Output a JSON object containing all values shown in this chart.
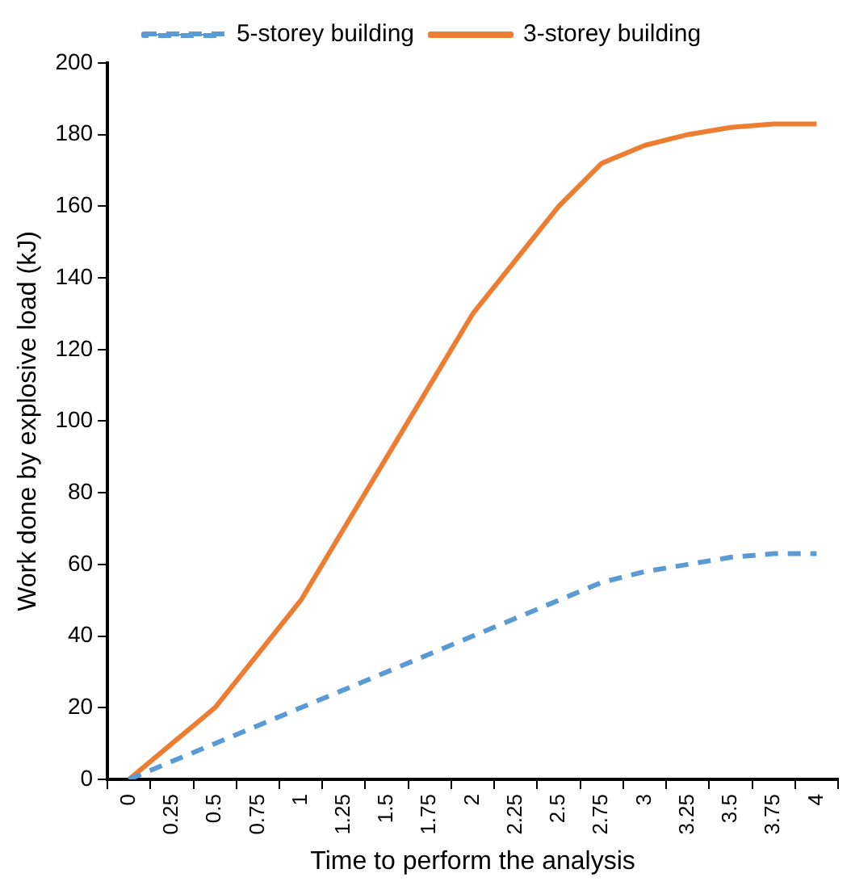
{
  "chart_data": {
    "type": "line",
    "xlabel": "Time to perform the analysis",
    "ylabel": "Work done by explosive load (kJ)",
    "categories": [
      "0",
      "0.25",
      "0.5",
      "0.75",
      "1",
      "1.25",
      "1.5",
      "1.75",
      "2",
      "2.25",
      "2.5",
      "2.75",
      "3",
      "3.25",
      "3.5",
      "3.75",
      "4"
    ],
    "series": [
      {
        "name": "5-storey building",
        "color": "#5b9bd5",
        "line_style": "dashed",
        "values": [
          0,
          5,
          10,
          15,
          20,
          25,
          30,
          35,
          40,
          45,
          50,
          55,
          58,
          60,
          62,
          63,
          63
        ]
      },
      {
        "name": "3-storey building",
        "color": "#ed7d31",
        "line_style": "solid",
        "values": [
          0,
          10,
          20,
          35,
          50,
          70,
          90,
          110,
          130,
          145,
          160,
          172,
          177,
          180,
          182,
          183,
          183
        ]
      }
    ],
    "ylim": [
      0,
      200
    ],
    "yticks": [
      0,
      20,
      40,
      60,
      80,
      100,
      120,
      140,
      160,
      180,
      200
    ],
    "grid": false,
    "legend": "top",
    "marker": "none"
  }
}
